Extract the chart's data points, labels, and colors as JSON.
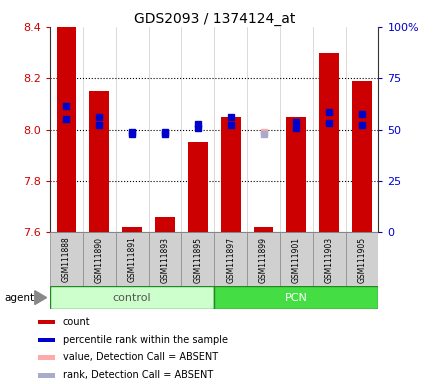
{
  "title": "GDS2093 / 1374124_at",
  "samples": [
    "GSM111888",
    "GSM111890",
    "GSM111891",
    "GSM111893",
    "GSM111895",
    "GSM111897",
    "GSM111899",
    "GSM111901",
    "GSM111903",
    "GSM111905"
  ],
  "bar_bottom": 7.6,
  "bar_tops": [
    8.4,
    8.15,
    7.62,
    7.66,
    7.95,
    8.05,
    7.62,
    8.05,
    8.3,
    8.19
  ],
  "ylim": [
    7.6,
    8.4
  ],
  "y2lim": [
    0,
    100
  ],
  "yticks": [
    7.6,
    7.8,
    8.0,
    8.2,
    8.4
  ],
  "y2ticks": [
    0,
    25,
    50,
    75,
    100
  ],
  "y2ticklabels": [
    "0",
    "25",
    "50",
    "75",
    "100%"
  ],
  "bar_color": "#cc0000",
  "dot_color_present": "#0000cc",
  "dot_color_absent_value": "#ffaaaa",
  "dot_color_absent_rank": "#aaaacc",
  "dot_values": [
    8.09,
    8.05,
    7.99,
    7.99,
    8.02,
    8.05,
    7.99,
    8.03,
    8.07,
    8.06
  ],
  "dot_absent": [
    false,
    false,
    false,
    false,
    false,
    false,
    true,
    false,
    false,
    false
  ],
  "dot_rank_values": [
    55,
    52,
    48,
    48,
    51,
    52,
    48,
    51,
    53,
    52
  ],
  "group_control_label": "control",
  "group_pcn_label": "PCN",
  "group_control_color": "#ccffcc",
  "group_pcn_color": "#44dd44",
  "agent_label": "agent",
  "legend_items": [
    {
      "color": "#cc0000",
      "label": "count"
    },
    {
      "color": "#0000cc",
      "label": "percentile rank within the sample"
    },
    {
      "color": "#ffaaaa",
      "label": "value, Detection Call = ABSENT"
    },
    {
      "color": "#aaaacc",
      "label": "rank, Detection Call = ABSENT"
    }
  ],
  "tick_label_color_left": "#cc0000",
  "tick_label_color_right": "#0000cc",
  "grid_dotted_at": [
    7.8,
    8.0,
    8.2
  ],
  "n_control": 5,
  "n_pcn": 5,
  "bar_width": 0.6
}
